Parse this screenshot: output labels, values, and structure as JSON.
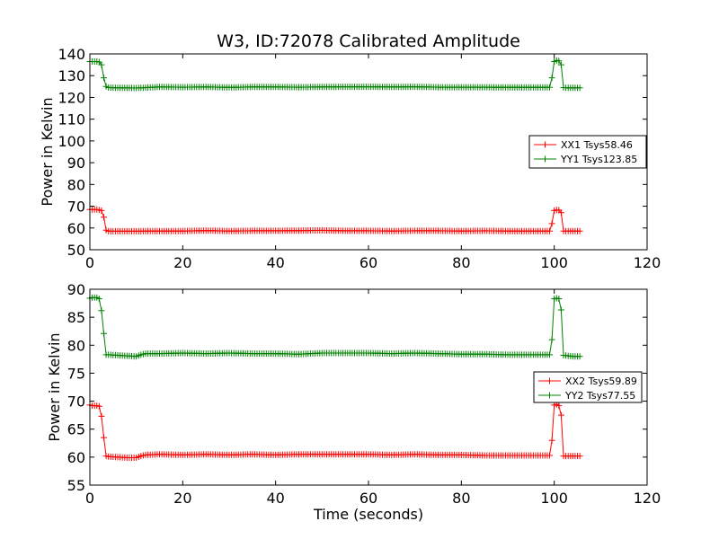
{
  "colors": {
    "xx": "#ff0000",
    "yy": "#008000",
    "axes": "#000000"
  },
  "chart_data": [
    {
      "type": "line",
      "title": "W3, ID:72078 Calibrated Amplitude",
      "xlabel": "",
      "ylabel": "Power in Kelvin",
      "xlim": [
        0,
        120
      ],
      "ylim": [
        50,
        140
      ],
      "xticks": [
        0,
        20,
        40,
        60,
        80,
        100,
        120
      ],
      "yticks": [
        50,
        60,
        70,
        80,
        90,
        100,
        110,
        120,
        130,
        140
      ],
      "legend_position": "center-right",
      "series": [
        {
          "name": "XX1 Tsys58.46",
          "color": "#ff0000",
          "x": [
            0,
            0.5,
            1,
            1.5,
            2,
            2.5,
            3,
            3.5,
            4,
            10,
            15,
            20,
            25,
            30,
            35,
            40,
            45,
            50,
            55,
            60,
            65,
            70,
            75,
            80,
            85,
            90,
            95,
            99,
            99.5,
            100,
            100.5,
            101,
            101.5,
            102,
            103,
            104,
            105.5
          ],
          "y": [
            68.5,
            68.5,
            68.5,
            68.5,
            68.3,
            68,
            65,
            59,
            58.5,
            58.5,
            58.6,
            58.6,
            58.8,
            58.6,
            58.7,
            58.7,
            58.8,
            58.9,
            58.7,
            58.7,
            58.6,
            58.7,
            58.7,
            58.6,
            58.7,
            58.6,
            58.6,
            58.6,
            62,
            68,
            68.3,
            68.2,
            67,
            58.6,
            58.6,
            58.6,
            58.6
          ]
        },
        {
          "name": "YY1 Tsys123.85",
          "color": "#008000",
          "x": [
            0,
            0.5,
            1,
            1.5,
            2,
            2.5,
            3,
            3.5,
            4,
            10,
            15,
            20,
            25,
            30,
            35,
            40,
            45,
            50,
            55,
            60,
            65,
            70,
            75,
            80,
            85,
            90,
            95,
            99,
            99.5,
            100,
            100.5,
            101,
            101.5,
            102,
            103,
            104,
            105.5
          ],
          "y": [
            136.5,
            136.5,
            136.5,
            136.5,
            136.3,
            135,
            129,
            125,
            124.5,
            124.3,
            124.8,
            124.7,
            124.8,
            124.6,
            124.8,
            124.8,
            124.7,
            124.8,
            124.9,
            124.9,
            124.8,
            124.9,
            124.7,
            124.7,
            124.7,
            124.6,
            124.6,
            124.6,
            129,
            136.5,
            137,
            136.8,
            135,
            124.5,
            124.4,
            124.4,
            124.4
          ]
        }
      ]
    },
    {
      "type": "line",
      "title": "",
      "xlabel": "Time (seconds)",
      "ylabel": "Power in Kelvin",
      "xlim": [
        0,
        120
      ],
      "ylim": [
        55,
        90
      ],
      "xticks": [
        0,
        20,
        40,
        60,
        80,
        100,
        120
      ],
      "yticks": [
        55,
        60,
        65,
        70,
        75,
        80,
        85,
        90
      ],
      "legend_position": "center-right",
      "series": [
        {
          "name": "XX2 Tsys59.89",
          "color": "#ff0000",
          "x": [
            0,
            0.5,
            1,
            1.5,
            2,
            2.5,
            3,
            3.5,
            4,
            6,
            8,
            10,
            11,
            12,
            15,
            20,
            25,
            30,
            35,
            40,
            45,
            50,
            55,
            60,
            65,
            70,
            75,
            80,
            85,
            90,
            95,
            99,
            99.5,
            100,
            100.5,
            101,
            101.5,
            102,
            103,
            104,
            105.5
          ],
          "y": [
            69.3,
            69.2,
            69.2,
            69.2,
            69.1,
            67.3,
            63.5,
            60.2,
            60.1,
            60.0,
            59.9,
            59.9,
            60.2,
            60.4,
            60.5,
            60.4,
            60.5,
            60.4,
            60.5,
            60.4,
            60.5,
            60.5,
            60.5,
            60.5,
            60.4,
            60.5,
            60.4,
            60.4,
            60.3,
            60.3,
            60.3,
            60.3,
            63,
            69.3,
            69.4,
            69.2,
            67.5,
            60.2,
            60.2,
            60.2,
            60.2
          ]
        },
        {
          "name": "YY2 Tsys77.55",
          "color": "#008000",
          "x": [
            0,
            0.5,
            1,
            1.5,
            2,
            2.5,
            3,
            3.5,
            4,
            6,
            8,
            10,
            11,
            12,
            15,
            20,
            25,
            30,
            35,
            40,
            45,
            50,
            55,
            60,
            65,
            70,
            75,
            80,
            85,
            90,
            95,
            99,
            99.5,
            100,
            100.5,
            101,
            101.5,
            102,
            103,
            104,
            105.5
          ],
          "y": [
            88.4,
            88.5,
            88.5,
            88.5,
            88.3,
            86.2,
            82.1,
            78.3,
            78.3,
            78.2,
            78.1,
            78.0,
            78.3,
            78.5,
            78.5,
            78.6,
            78.5,
            78.6,
            78.5,
            78.5,
            78.4,
            78.6,
            78.6,
            78.6,
            78.5,
            78.6,
            78.5,
            78.4,
            78.4,
            78.3,
            78.3,
            78.3,
            81,
            88.3,
            88.4,
            88.3,
            86.3,
            78.2,
            78.1,
            78.0,
            78.0
          ]
        }
      ]
    }
  ]
}
